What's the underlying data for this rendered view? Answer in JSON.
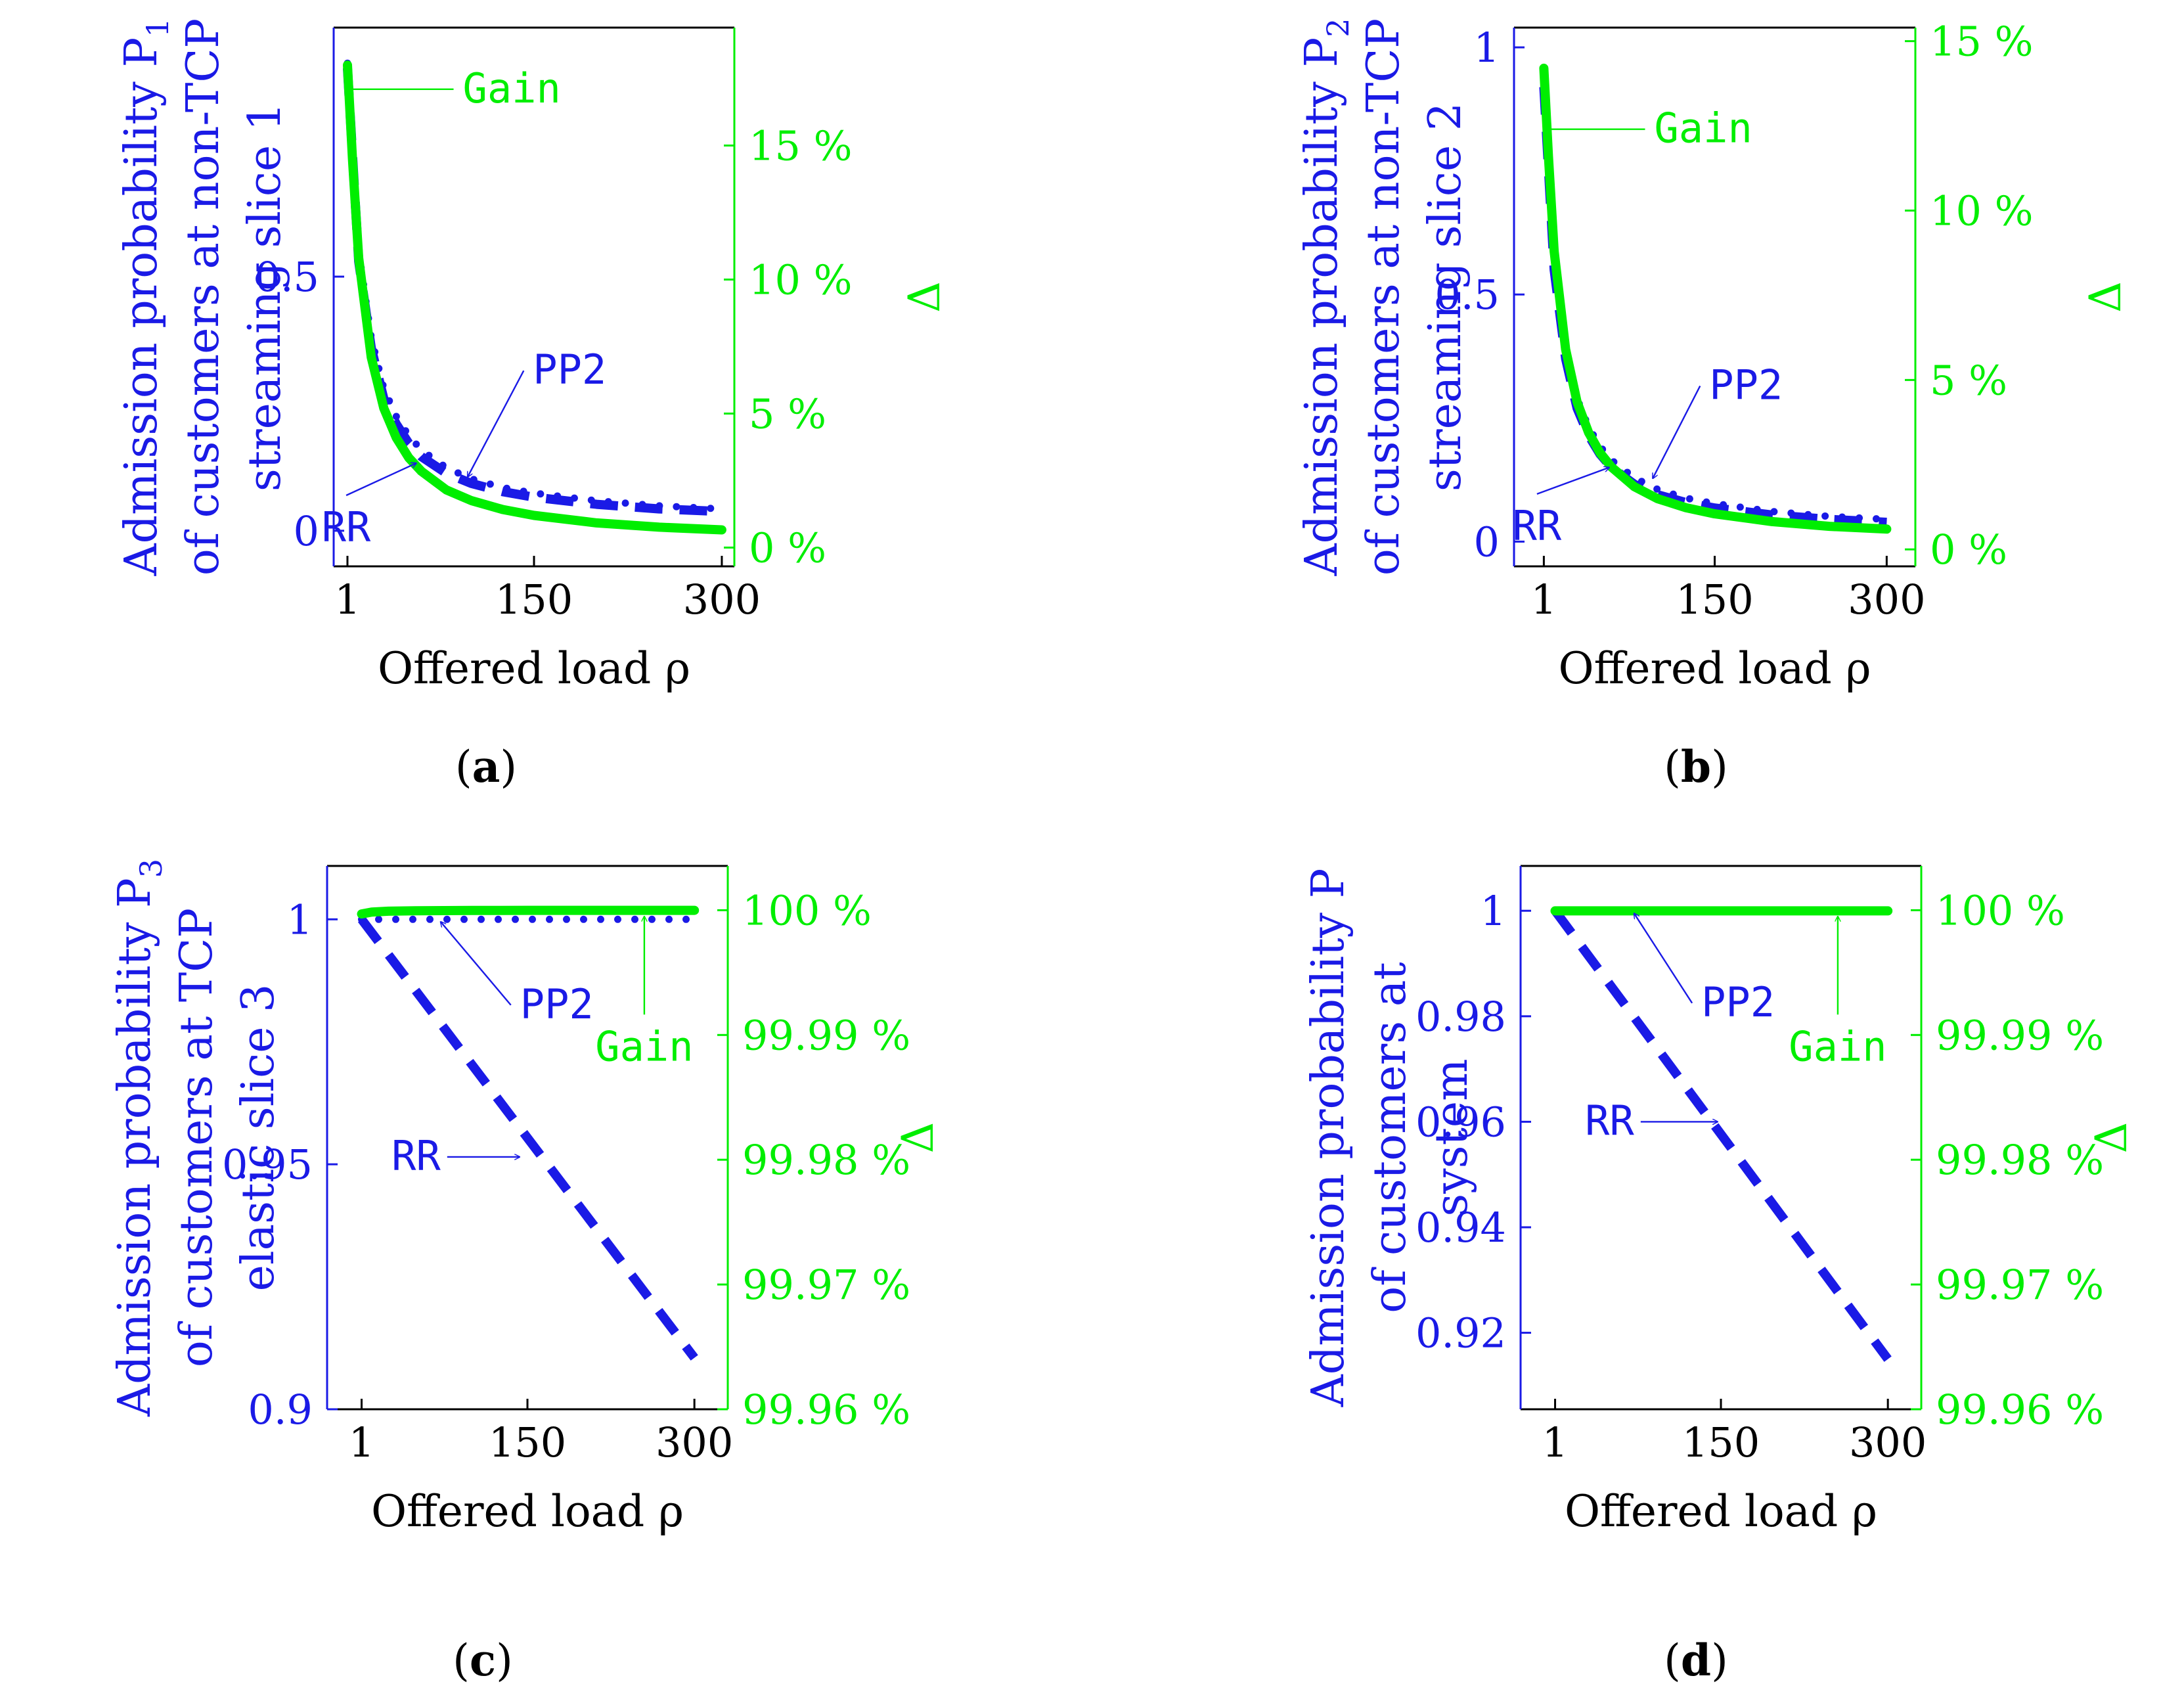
{
  "colors": {
    "primary": "#1a1ae6",
    "secondary": "#00ee00",
    "text": "#000000"
  },
  "chart_data": [
    {
      "type": "line",
      "panel_label": "a",
      "ylabel_lines": [
        "Admission probability P",
        "of customers at non-TCP",
        "streaming slice 1"
      ],
      "ylabel_sub": "1",
      "sublabel_line": 0,
      "y2label": "Δ",
      "xlabel": "Offered load ρ",
      "xlim": [
        -10,
        310
      ],
      "ylim": [
        -0.07,
        0.99
      ],
      "y2lim": [
        -0.7,
        19.4
      ],
      "xticks": [
        1,
        150,
        300
      ],
      "xtick_labels": [
        "1",
        "150",
        "300"
      ],
      "yticks": [
        0,
        0.5
      ],
      "ytick_labels": [
        "0",
        "0.5"
      ],
      "y2ticks": [
        0,
        5,
        10,
        15
      ],
      "y2tick_labels": [
        "0 %",
        "5 %",
        "10 %",
        "15 %"
      ],
      "series": [
        {
          "name": "RR",
          "axis": "y1",
          "style": "dashed",
          "x": [
            1,
            10,
            20,
            30,
            40,
            50,
            60,
            80,
            100,
            125,
            150,
            200,
            250,
            300
          ],
          "values": [
            0.91,
            0.53,
            0.36,
            0.26,
            0.21,
            0.172,
            0.146,
            0.113,
            0.093,
            0.077,
            0.066,
            0.052,
            0.043,
            0.038
          ]
        },
        {
          "name": "PP2",
          "axis": "y1",
          "style": "dotted",
          "x": [
            1,
            10,
            20,
            30,
            40,
            50,
            60,
            80,
            100,
            125,
            150,
            200,
            250,
            300
          ],
          "values": [
            0.92,
            0.55,
            0.38,
            0.28,
            0.225,
            0.187,
            0.159,
            0.124,
            0.102,
            0.085,
            0.074,
            0.059,
            0.049,
            0.043
          ]
        },
        {
          "name": "Gain",
          "axis": "y2",
          "style": "solid",
          "x": [
            1,
            5,
            10,
            20,
            30,
            40,
            50,
            60,
            80,
            100,
            125,
            150,
            200,
            250,
            300
          ],
          "values": [
            18,
            14.5,
            10.8,
            7.1,
            5.2,
            4.1,
            3.35,
            2.85,
            2.15,
            1.75,
            1.42,
            1.2,
            0.92,
            0.76,
            0.66
          ]
        }
      ],
      "annotations": [
        {
          "label": "Gain",
          "color": "secondary",
          "text_x": 91,
          "text_y": 17.1,
          "tip_x": 1,
          "tip_y": 17.1,
          "anchor": "start"
        },
        {
          "label": "PP2",
          "color": "primary",
          "text_x": 147,
          "text_y": 0.315,
          "tip_x": 97,
          "tip_y": 0.106,
          "anchor": "start"
        },
        {
          "label": "RR",
          "color": "primary",
          "text_x": 0,
          "text_y": 0.005,
          "tip_x": 56,
          "tip_y": 0.133,
          "anchor": "middle"
        }
      ]
    },
    {
      "type": "line",
      "panel_label": "b",
      "ylabel_lines": [
        "Admission probability P",
        "of customers at non-TCP",
        "streaming slice 2"
      ],
      "ylabel_sub": "2",
      "sublabel_line": 0,
      "y2label": "Δ",
      "xlabel": "Offered load ρ",
      "xlim": [
        -25,
        325
      ],
      "ylim": [
        -0.05,
        1.04
      ],
      "y2lim": [
        -0.5,
        15.4
      ],
      "xticks": [
        1,
        150,
        300
      ],
      "xtick_labels": [
        "1",
        "150",
        "300"
      ],
      "yticks": [
        0,
        0.5,
        1
      ],
      "ytick_labels": [
        "0",
        "0.5",
        "1"
      ],
      "y2ticks": [
        0,
        5,
        10,
        15
      ],
      "y2tick_labels": [
        "0 %",
        "5 %",
        "10 %",
        "15 %"
      ],
      "series": [
        {
          "name": "RR",
          "axis": "y1",
          "style": "dashed",
          "x": [
            1,
            10,
            20,
            30,
            40,
            50,
            60,
            80,
            100,
            125,
            150,
            200,
            250,
            300
          ],
          "values": [
            0.92,
            0.55,
            0.37,
            0.27,
            0.215,
            0.177,
            0.15,
            0.116,
            0.095,
            0.079,
            0.068,
            0.054,
            0.045,
            0.039
          ]
        },
        {
          "name": "PP2",
          "axis": "y1",
          "style": "dotted",
          "x": [
            1,
            10,
            20,
            30,
            40,
            50,
            60,
            80,
            100,
            125,
            150,
            200,
            250,
            300
          ],
          "values": [
            0.93,
            0.57,
            0.39,
            0.29,
            0.232,
            0.193,
            0.165,
            0.129,
            0.106,
            0.088,
            0.077,
            0.061,
            0.051,
            0.045
          ]
        },
        {
          "name": "Gain",
          "axis": "y2",
          "style": "solid",
          "x": [
            1,
            5,
            10,
            20,
            30,
            40,
            50,
            60,
            80,
            100,
            125,
            150,
            200,
            250,
            300
          ],
          "values": [
            14.2,
            11.6,
            8.8,
            5.9,
            4.35,
            3.45,
            2.85,
            2.43,
            1.85,
            1.5,
            1.23,
            1.05,
            0.82,
            0.68,
            0.6
          ]
        }
      ],
      "annotations": [
        {
          "label": "Gain",
          "color": "secondary",
          "text_x": 95,
          "text_y": 12.4,
          "tip_x": 3,
          "tip_y": 12.4,
          "anchor": "start"
        },
        {
          "label": "PP2",
          "color": "primary",
          "text_x": 143,
          "text_y": 0.315,
          "tip_x": 96,
          "tip_y": 0.128,
          "anchor": "start"
        },
        {
          "label": "RR",
          "color": "primary",
          "text_x": -5,
          "text_y": 0.03,
          "tip_x": 58,
          "tip_y": 0.15,
          "anchor": "middle"
        }
      ]
    },
    {
      "type": "line",
      "panel_label": "c",
      "ylabel_lines": [
        "Admission probability P",
        "of customers at TCP",
        "elastic slice 3"
      ],
      "ylabel_sub": "3",
      "sublabel_line": 0,
      "y2label": "Δ",
      "xlabel": "Offered load ρ",
      "xlim": [
        -30,
        330
      ],
      "ylim": [
        0.9,
        1.0109
      ],
      "y2lim": [
        99.96,
        100.00355
      ],
      "xticks": [
        1,
        150,
        300
      ],
      "xtick_labels": [
        "1",
        "150",
        "300"
      ],
      "yticks": [
        0.9,
        0.95,
        1
      ],
      "ytick_labels": [
        "0.9",
        "0.95",
        "1"
      ],
      "y2ticks": [
        99.96,
        99.97,
        99.98,
        99.99,
        100
      ],
      "y2tick_labels": [
        "99.96 %",
        "99.97 %",
        "99.98 %",
        "99.99 %",
        "100 %"
      ],
      "series": [
        {
          "name": "RR",
          "axis": "y1",
          "style": "dashed",
          "x": [
            1,
            300
          ],
          "values": [
            1.0,
            0.9105
          ]
        },
        {
          "name": "PP2",
          "axis": "y1",
          "style": "dotted",
          "x": [
            1,
            300
          ],
          "values": [
            1.0,
            1.0
          ]
        },
        {
          "name": "Gain",
          "axis": "y2",
          "style": "solid",
          "x": [
            1,
            10,
            25,
            50,
            75,
            100,
            150,
            200,
            250,
            300
          ],
          "values": [
            99.9997,
            99.99985,
            99.99992,
            99.99996,
            99.99997,
            99.99998,
            99.99999,
            99.99999,
            99.99999,
            99.99999
          ]
        }
      ],
      "annotations": [
        {
          "label": "PP2",
          "color": "primary",
          "text_x": 141,
          "text_y": 0.9825,
          "tip_x": 72,
          "tip_y": 0.9995,
          "anchor": "start"
        },
        {
          "label": "Gain",
          "color": "secondary",
          "text_x": 255,
          "text_y": 99.989,
          "tip_x": 255,
          "tip_y": 99.9995,
          "anchor": "middle"
        },
        {
          "label": "RR",
          "color": "primary",
          "text_x": 72,
          "text_y": 0.9515,
          "tip_x": 143,
          "tip_y": 0.9515,
          "anchor": "end"
        }
      ]
    },
    {
      "type": "line",
      "panel_label": "d",
      "ylabel_lines": [
        "Admission probability P",
        "of customers at",
        "system"
      ],
      "ylabel_sub": "",
      "sublabel_line": -1,
      "y2label": "Δ",
      "xlabel": "Offered load ρ",
      "xlim": [
        -30,
        330
      ],
      "ylim": [
        0.9055,
        1.0085
      ],
      "y2lim": [
        99.96,
        100.00355
      ],
      "xticks": [
        1,
        150,
        300
      ],
      "xtick_labels": [
        "1",
        "150",
        "300"
      ],
      "yticks": [
        0.92,
        0.94,
        0.96,
        0.98,
        1
      ],
      "ytick_labels": [
        "0.92",
        "0.94",
        "0.96",
        "0.98",
        "1"
      ],
      "y2ticks": [
        99.96,
        99.97,
        99.98,
        99.99,
        100
      ],
      "y2tick_labels": [
        "99.96 %",
        "99.97 %",
        "99.98 %",
        "99.99 %",
        "100 %"
      ],
      "series": [
        {
          "name": "RR",
          "axis": "y1",
          "style": "dashed",
          "x": [
            1,
            300
          ],
          "values": [
            1.0,
            0.915
          ]
        },
        {
          "name": "PP2",
          "axis": "y1",
          "style": "dotted",
          "x": [
            1,
            300
          ],
          "values": [
            1.0,
            1.0
          ]
        },
        {
          "name": "Gain",
          "axis": "y2",
          "style": "solid",
          "x": [
            1,
            300
          ],
          "values": [
            99.99995,
            99.99995
          ]
        }
      ],
      "annotations": [
        {
          "label": "PP2",
          "color": "primary",
          "text_x": 130,
          "text_y": 0.9825,
          "tip_x": 72,
          "tip_y": 0.9995,
          "anchor": "start"
        },
        {
          "label": "Gain",
          "color": "secondary",
          "text_x": 255,
          "text_y": 99.989,
          "tip_x": 255,
          "tip_y": 99.9995,
          "anchor": "middle"
        },
        {
          "label": "RR",
          "color": "primary",
          "text_x": 72,
          "text_y": 0.96,
          "tip_x": 147,
          "tip_y": 0.96,
          "anchor": "end"
        }
      ]
    }
  ]
}
